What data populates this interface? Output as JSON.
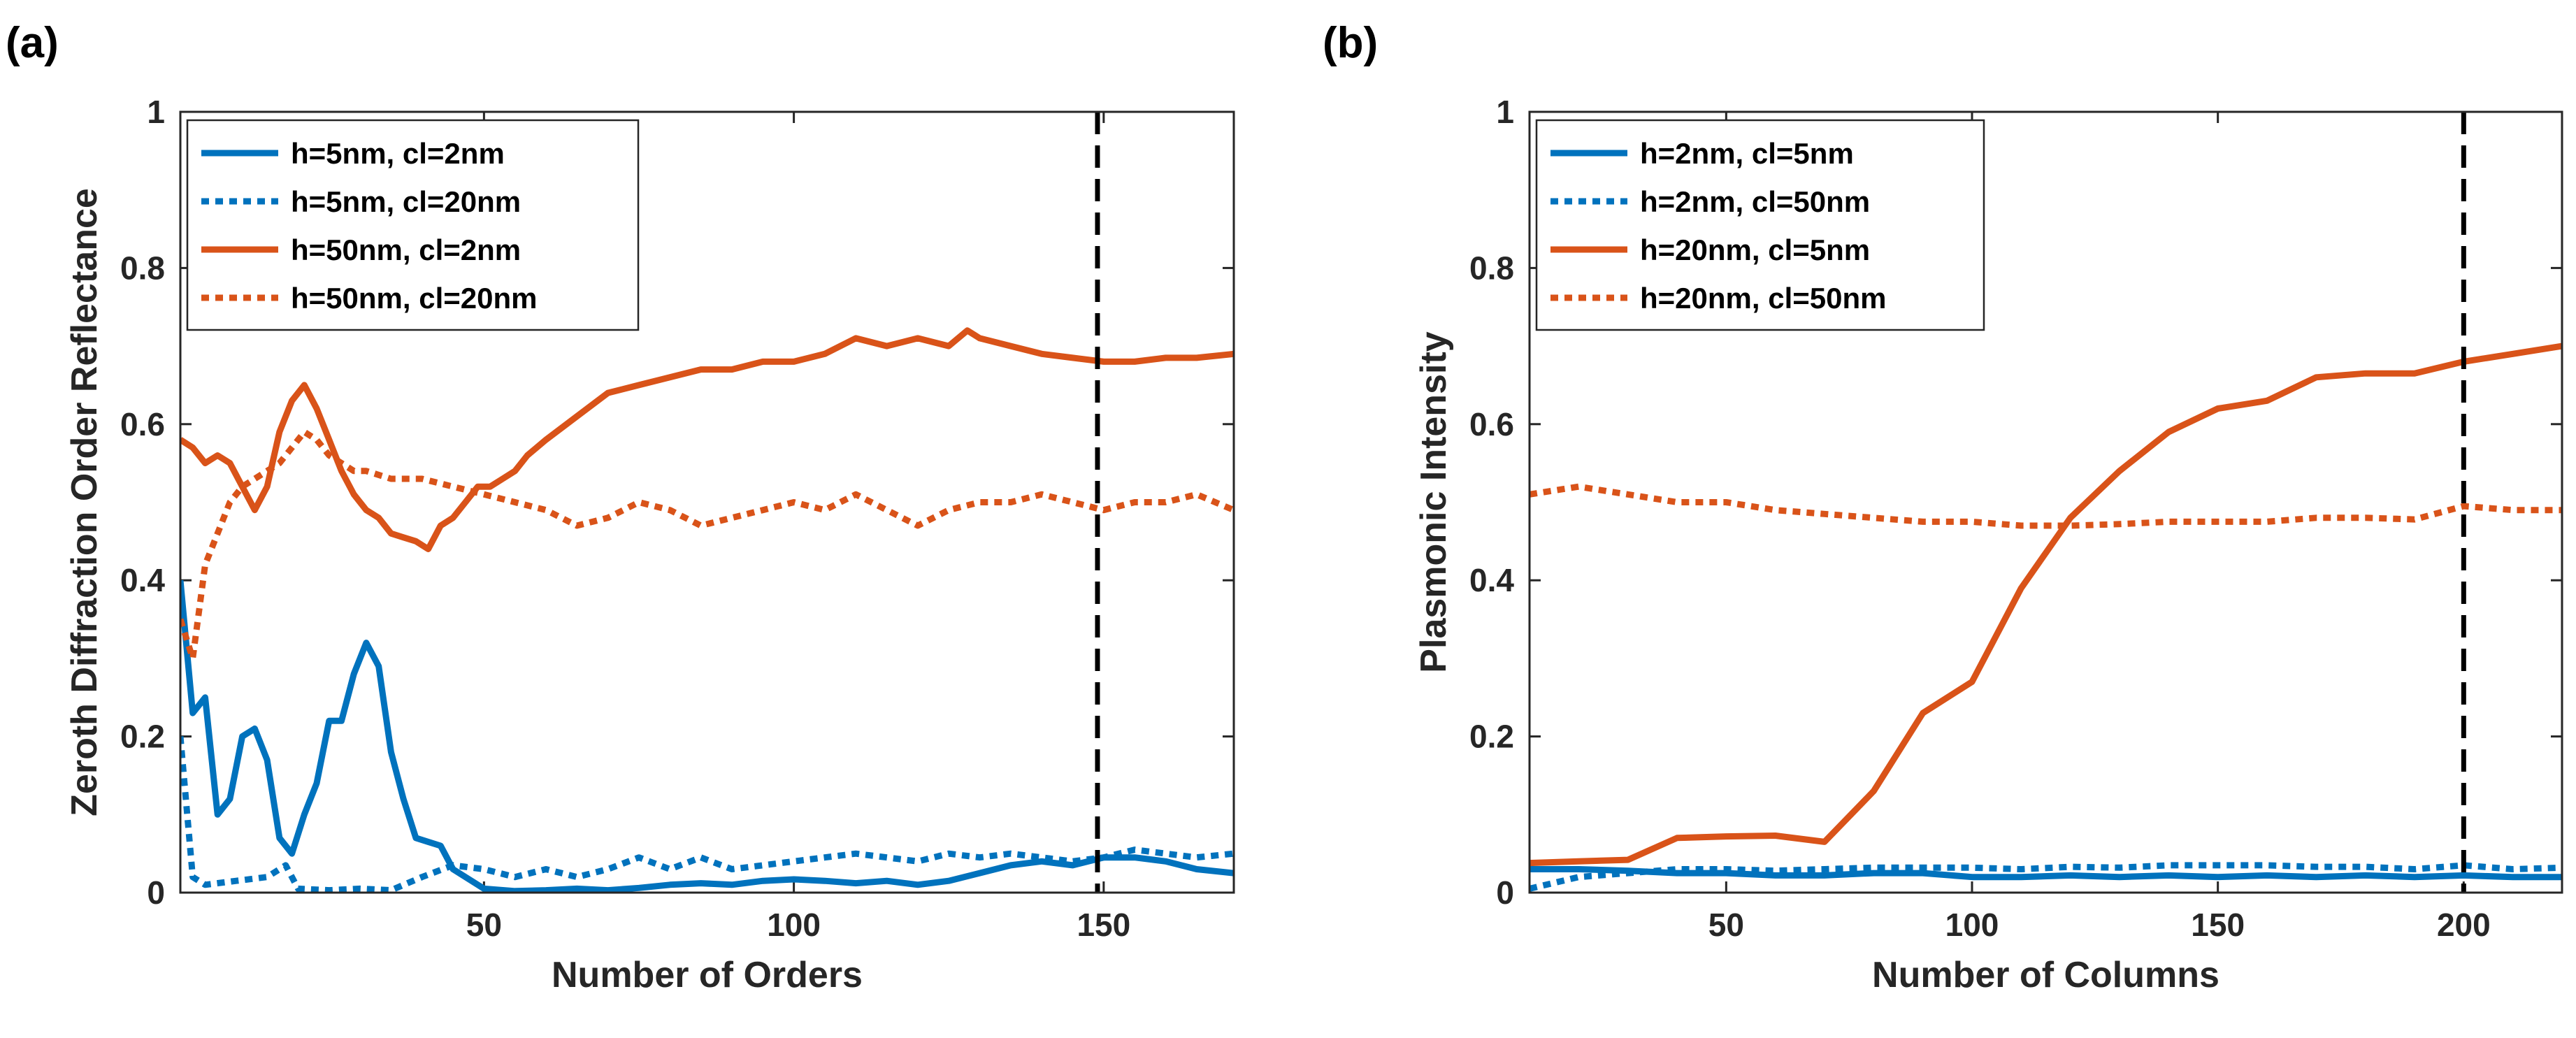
{
  "chart_data": [
    {
      "panel": "(a)",
      "type": "line",
      "xlabel": "Number of Orders",
      "ylabel": "Zeroth Diffraction Order Reflectance",
      "xlim": [
        1,
        171
      ],
      "ylim": [
        0,
        1
      ],
      "xticks": [
        50,
        100,
        150
      ],
      "yticks": [
        0,
        0.2,
        0.4,
        0.6,
        0.8,
        1
      ],
      "ytick_labels": [
        "0",
        "0.2",
        "0.4",
        "0.6",
        "0.8",
        "1"
      ],
      "vline": 149,
      "legend_position": "top-left",
      "series": [
        {
          "name": "h=5nm, cl=2nm",
          "color": "#0072BD",
          "style": "solid",
          "x": [
            1,
            3,
            5,
            7,
            9,
            11,
            13,
            15,
            17,
            19,
            21,
            23,
            25,
            27,
            29,
            31,
            33,
            35,
            37,
            39,
            41,
            43,
            45,
            50,
            55,
            60,
            65,
            70,
            75,
            80,
            85,
            90,
            95,
            100,
            105,
            110,
            115,
            120,
            125,
            130,
            135,
            140,
            145,
            150,
            155,
            160,
            165,
            171
          ],
          "y": [
            0.4,
            0.23,
            0.25,
            0.1,
            0.12,
            0.2,
            0.21,
            0.17,
            0.07,
            0.05,
            0.1,
            0.14,
            0.22,
            0.22,
            0.28,
            0.32,
            0.29,
            0.18,
            0.12,
            0.07,
            0.065,
            0.06,
            0.03,
            0.005,
            0.002,
            0.003,
            0.005,
            0.003,
            0.006,
            0.01,
            0.012,
            0.01,
            0.015,
            0.017,
            0.015,
            0.012,
            0.015,
            0.01,
            0.015,
            0.025,
            0.035,
            0.04,
            0.035,
            0.045,
            0.045,
            0.04,
            0.03,
            0.025
          ]
        },
        {
          "name": "h=5nm, cl=20nm",
          "color": "#0072BD",
          "style": "dotted",
          "x": [
            1,
            3,
            5,
            10,
            15,
            18,
            20,
            25,
            30,
            35,
            40,
            45,
            50,
            55,
            60,
            65,
            70,
            75,
            80,
            85,
            90,
            95,
            100,
            105,
            110,
            115,
            120,
            125,
            130,
            135,
            140,
            145,
            150,
            155,
            160,
            165,
            171
          ],
          "y": [
            0.2,
            0.02,
            0.01,
            0.015,
            0.02,
            0.035,
            0.005,
            0.003,
            0.005,
            0.003,
            0.02,
            0.035,
            0.03,
            0.02,
            0.03,
            0.02,
            0.03,
            0.045,
            0.03,
            0.045,
            0.03,
            0.035,
            0.04,
            0.045,
            0.05,
            0.045,
            0.04,
            0.05,
            0.045,
            0.05,
            0.045,
            0.04,
            0.045,
            0.055,
            0.05,
            0.045,
            0.05
          ]
        },
        {
          "name": "h=50nm, cl=2nm",
          "color": "#D95319",
          "style": "solid",
          "x": [
            1,
            3,
            5,
            7,
            9,
            11,
            13,
            15,
            17,
            19,
            21,
            23,
            25,
            27,
            29,
            31,
            33,
            35,
            37,
            39,
            41,
            43,
            45,
            47,
            49,
            51,
            53,
            55,
            57,
            60,
            65,
            70,
            75,
            80,
            85,
            90,
            95,
            100,
            105,
            110,
            115,
            120,
            125,
            128,
            130,
            135,
            140,
            145,
            150,
            155,
            160,
            165,
            171
          ],
          "y": [
            0.58,
            0.57,
            0.55,
            0.56,
            0.55,
            0.52,
            0.49,
            0.52,
            0.59,
            0.63,
            0.65,
            0.62,
            0.58,
            0.54,
            0.51,
            0.49,
            0.48,
            0.46,
            0.455,
            0.45,
            0.44,
            0.47,
            0.48,
            0.5,
            0.52,
            0.52,
            0.53,
            0.54,
            0.56,
            0.58,
            0.61,
            0.64,
            0.65,
            0.66,
            0.67,
            0.67,
            0.68,
            0.68,
            0.69,
            0.71,
            0.7,
            0.71,
            0.7,
            0.72,
            0.71,
            0.7,
            0.69,
            0.685,
            0.68,
            0.68,
            0.685,
            0.685,
            0.69
          ]
        },
        {
          "name": "h=50nm, cl=20nm",
          "color": "#D95319",
          "style": "dotted",
          "x": [
            1,
            3,
            5,
            7,
            9,
            11,
            13,
            15,
            17,
            19,
            21,
            23,
            25,
            27,
            29,
            31,
            35,
            40,
            45,
            50,
            55,
            60,
            65,
            70,
            75,
            80,
            85,
            90,
            95,
            100,
            105,
            110,
            115,
            120,
            125,
            130,
            135,
            140,
            145,
            150,
            155,
            160,
            165,
            171
          ],
          "y": [
            0.35,
            0.3,
            0.42,
            0.46,
            0.5,
            0.52,
            0.53,
            0.54,
            0.55,
            0.57,
            0.59,
            0.58,
            0.56,
            0.55,
            0.54,
            0.54,
            0.53,
            0.53,
            0.52,
            0.51,
            0.5,
            0.49,
            0.47,
            0.48,
            0.5,
            0.49,
            0.47,
            0.48,
            0.49,
            0.5,
            0.49,
            0.51,
            0.49,
            0.47,
            0.49,
            0.5,
            0.5,
            0.51,
            0.5,
            0.49,
            0.5,
            0.5,
            0.51,
            0.49
          ]
        }
      ]
    },
    {
      "panel": "(b)",
      "type": "line",
      "xlabel": "Number of Columns",
      "ylabel": "Plasmonic Intensity",
      "xlim": [
        10,
        220
      ],
      "ylim": [
        0,
        1
      ],
      "xticks": [
        50,
        100,
        150,
        200
      ],
      "yticks": [
        0,
        0.2,
        0.4,
        0.6,
        0.8,
        1
      ],
      "ytick_labels": [
        "0",
        "0.2",
        "0.4",
        "0.6",
        "0.8",
        "1"
      ],
      "vline": 200,
      "legend_position": "top-left",
      "series": [
        {
          "name": "h=2nm, cl=5nm",
          "color": "#0072BD",
          "style": "solid",
          "x": [
            10,
            20,
            30,
            40,
            50,
            60,
            70,
            80,
            90,
            100,
            110,
            120,
            130,
            140,
            150,
            160,
            170,
            180,
            190,
            200,
            210,
            220
          ],
          "y": [
            0.03,
            0.03,
            0.028,
            0.025,
            0.025,
            0.022,
            0.022,
            0.025,
            0.025,
            0.02,
            0.02,
            0.022,
            0.02,
            0.022,
            0.02,
            0.022,
            0.02,
            0.022,
            0.02,
            0.022,
            0.02,
            0.02
          ]
        },
        {
          "name": "h=2nm, cl=50nm",
          "color": "#0072BD",
          "style": "dotted",
          "x": [
            10,
            20,
            30,
            40,
            50,
            60,
            70,
            80,
            90,
            100,
            110,
            120,
            130,
            140,
            150,
            160,
            170,
            180,
            190,
            200,
            210,
            220
          ],
          "y": [
            0.005,
            0.02,
            0.025,
            0.03,
            0.03,
            0.028,
            0.03,
            0.032,
            0.032,
            0.032,
            0.03,
            0.033,
            0.032,
            0.035,
            0.035,
            0.035,
            0.033,
            0.033,
            0.03,
            0.035,
            0.03,
            0.032
          ]
        },
        {
          "name": "h=20nm, cl=5nm",
          "color": "#D95319",
          "style": "solid",
          "x": [
            10,
            20,
            30,
            40,
            50,
            60,
            70,
            80,
            90,
            100,
            110,
            120,
            130,
            140,
            150,
            160,
            170,
            180,
            190,
            200,
            210,
            220
          ],
          "y": [
            0.038,
            0.04,
            0.042,
            0.07,
            0.072,
            0.073,
            0.065,
            0.13,
            0.23,
            0.27,
            0.39,
            0.48,
            0.54,
            0.59,
            0.62,
            0.63,
            0.66,
            0.665,
            0.665,
            0.68,
            0.69,
            0.7
          ]
        },
        {
          "name": "h=20nm, cl=50nm",
          "color": "#D95319",
          "style": "dotted",
          "x": [
            10,
            20,
            30,
            40,
            50,
            60,
            70,
            80,
            90,
            100,
            110,
            120,
            130,
            140,
            150,
            160,
            170,
            180,
            190,
            200,
            210,
            220
          ],
          "y": [
            0.51,
            0.52,
            0.51,
            0.5,
            0.5,
            0.49,
            0.485,
            0.48,
            0.475,
            0.475,
            0.47,
            0.47,
            0.472,
            0.475,
            0.475,
            0.475,
            0.48,
            0.48,
            0.478,
            0.495,
            0.49,
            0.49
          ]
        }
      ]
    }
  ]
}
